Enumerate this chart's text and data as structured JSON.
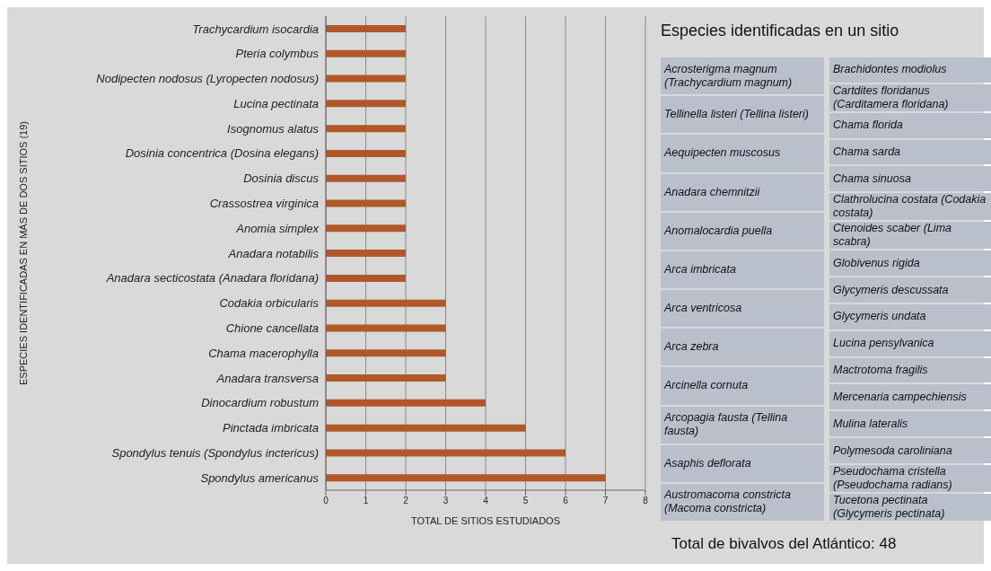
{
  "chart_data": [
    {
      "type": "bar",
      "orientation": "horizontal",
      "xlabel": "TOTAL DE SITIOS ESTUDIADOS",
      "ylabel": "ESPECIES IDENTIFICADAS EN MÁS DE DOS SITIOS (19)",
      "categories": [
        "Trachycardium isocardia",
        "Pteria colymbus",
        "Nodipecten nodosus (Lyropecten nodosus)",
        "Lucina pectinata",
        "Isognomus alatus",
        "Dosinia concentrica (Dosina elegans)",
        "Dosinia discus",
        "Crassostrea virginica",
        "Anomia simplex",
        "Anadara notabilis",
        "Anadara secticostata (Anadara floridana)",
        "Codakia orbicularis",
        "Chione cancellata",
        "Chama macerophylla",
        "Anadara transversa",
        "Dinocardium robustum",
        "Pinctada imbricata",
        "Spondylus tenuis (Spondylus inctericus)",
        "Spondylus americanus"
      ],
      "values": [
        2,
        2,
        2,
        2,
        2,
        2,
        2,
        2,
        2,
        2,
        2,
        3,
        3,
        3,
        3,
        4,
        5,
        6,
        7
      ],
      "color": "#b0582a",
      "xlim": [
        0,
        8
      ],
      "xticks": [
        0,
        1,
        2,
        3,
        4,
        5,
        6,
        7,
        8
      ],
      "grid": "x",
      "annotations": [
        "Total de bivalvos del Atlántico: 48"
      ]
    },
    {
      "type": "other",
      "title": "Especies identificadas en un sitio",
      "annotations": [
        "Acrosterigma magnum (Trachycardium magnum)",
        "Tellinella listeri (Tellina listeri)",
        "Aequipecten muscosus",
        "Anadara chemnitzii",
        "Anomalocardia puella",
        "Arca imbricata",
        "Arca ventricosa",
        "Arca zebra",
        "Arcinella cornuta",
        "Arcopagia fausta (Tellina fausta)",
        "Asaphis deflorata",
        "Austromacoma constricta (Macoma constricta)"
      ]
    },
    {
      "type": "other",
      "annotations": [
        "Brachidontes modiolus",
        "Cartdites floridanus (Carditamera floridana)",
        "Chama florida",
        "Chama sarda",
        "Chama sinuosa",
        "Clathrolucina costata (Codakia costata)",
        "Ctenoides scaber (Lima scabra)",
        "Globivenus rigida",
        "Glycymeris descussata",
        "Glycymeris undata",
        "Lucina pensylvanica",
        "Mactrotoma fragilis",
        "Mercenaria campechiensis",
        "Mulina lateralis",
        "Polymesoda caroliniana",
        "Pseudochama cristella (Pseudochama radians)",
        "Tucetona pectinata (Glycymeris pectinata)"
      ]
    }
  ]
}
